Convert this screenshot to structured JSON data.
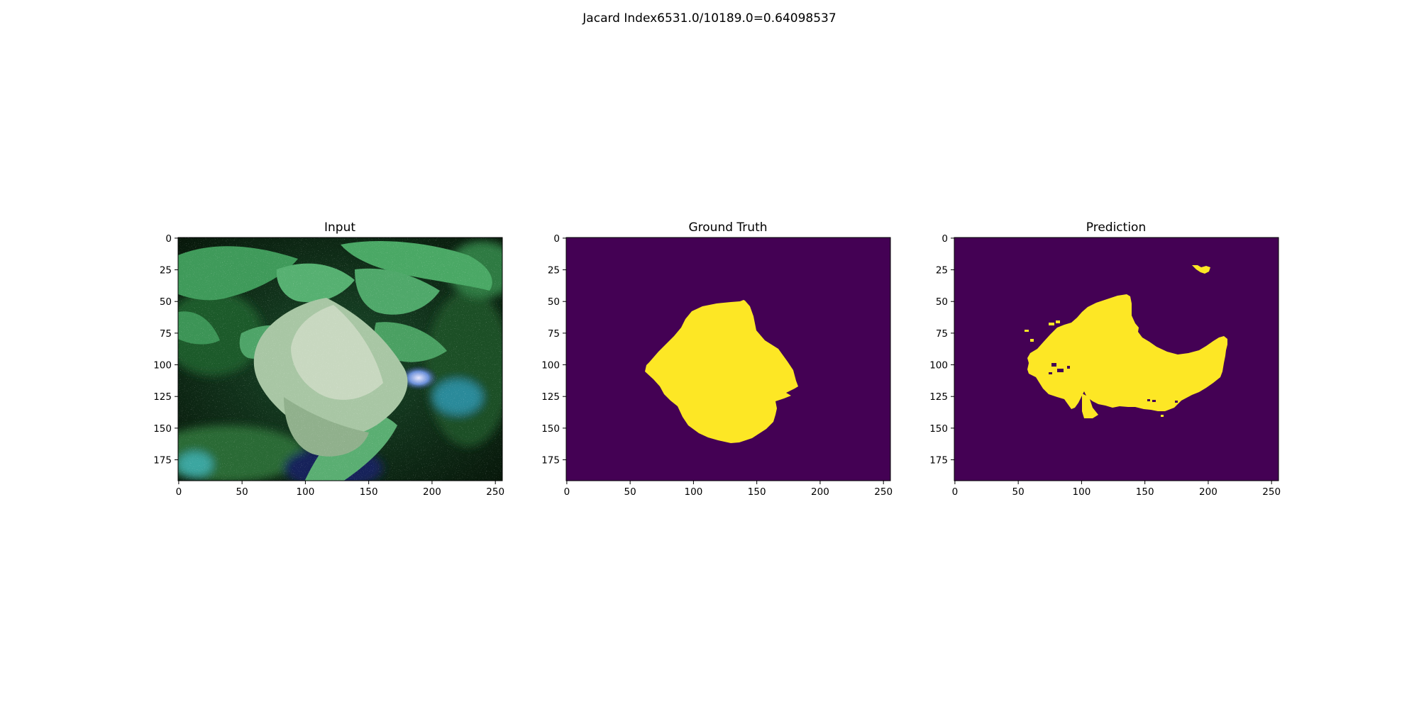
{
  "figure": {
    "suptitle": "Jacard Index6531.0/10189.0=0.64098537"
  },
  "panels": [
    {
      "title": "Input",
      "content": "leaf-photo",
      "x_ticks": [
        "0",
        "50",
        "100",
        "150",
        "200",
        "250"
      ],
      "y_ticks": [
        "0",
        "25",
        "50",
        "75",
        "100",
        "125",
        "150",
        "175"
      ]
    },
    {
      "title": "Ground Truth",
      "content": "mask",
      "x_ticks": [
        "0",
        "50",
        "100",
        "150",
        "200",
        "250"
      ],
      "y_ticks": [
        "0",
        "25",
        "50",
        "75",
        "100",
        "125",
        "150",
        "175"
      ]
    },
    {
      "title": "Prediction",
      "content": "mask",
      "x_ticks": [
        "0",
        "50",
        "100",
        "150",
        "200",
        "250"
      ],
      "y_ticks": [
        "0",
        "25",
        "50",
        "75",
        "100",
        "125",
        "150",
        "175"
      ]
    }
  ],
  "image_extent": {
    "x_range": [
      0,
      256
    ],
    "y_range": [
      0,
      192
    ]
  },
  "colors": {
    "mask_background": "#440154",
    "mask_foreground": "#fde725"
  }
}
